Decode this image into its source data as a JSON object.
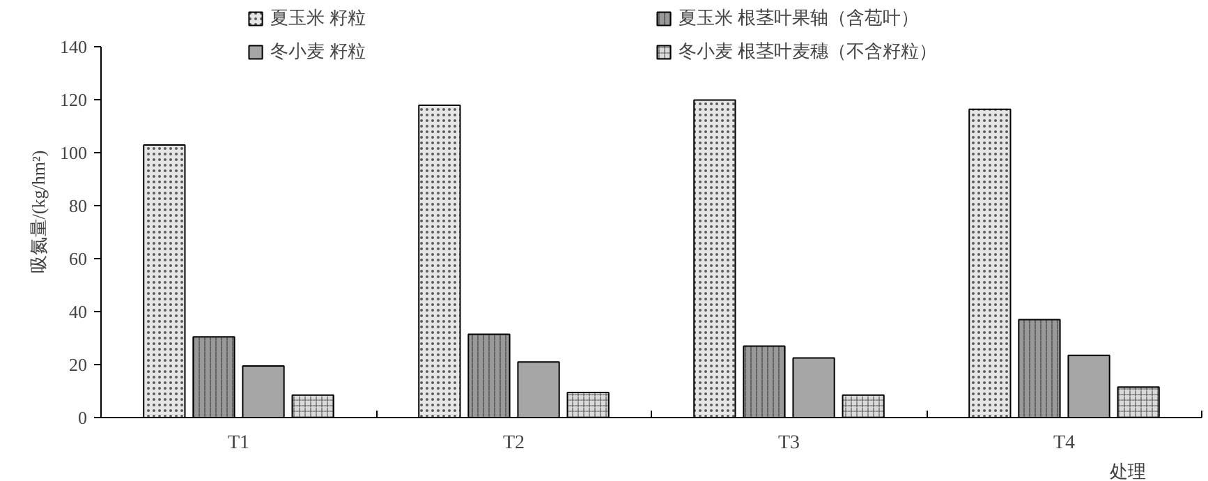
{
  "chart_data": {
    "type": "bar",
    "xlabel": "处理",
    "ylabel": "吸氮量/(kg/hm²)",
    "categories": [
      "T1",
      "T2",
      "T3",
      "T4"
    ],
    "series": [
      {
        "name": "夏玉米 籽粒",
        "color": "#e6e6e6",
        "values": [
          103,
          118,
          120,
          116.5
        ]
      },
      {
        "name": "夏玉米 根茎叶果轴（含苞叶）",
        "color": "#999999",
        "values": [
          30.5,
          31.5,
          27,
          37
        ]
      },
      {
        "name": "冬小麦 籽粒",
        "color": "#a6a6a6",
        "values": [
          19.5,
          21,
          22.5,
          23.5
        ]
      },
      {
        "name": "冬小麦 根茎叶麦穗（不含籽粒）",
        "color": "#d9d9d9",
        "values": [
          8.5,
          9.5,
          8.5,
          11.5
        ]
      }
    ],
    "ylim": [
      0,
      140
    ],
    "yticks": [
      0,
      20,
      40,
      60,
      80,
      100,
      120,
      140
    ],
    "grid": false,
    "legend": "top"
  }
}
